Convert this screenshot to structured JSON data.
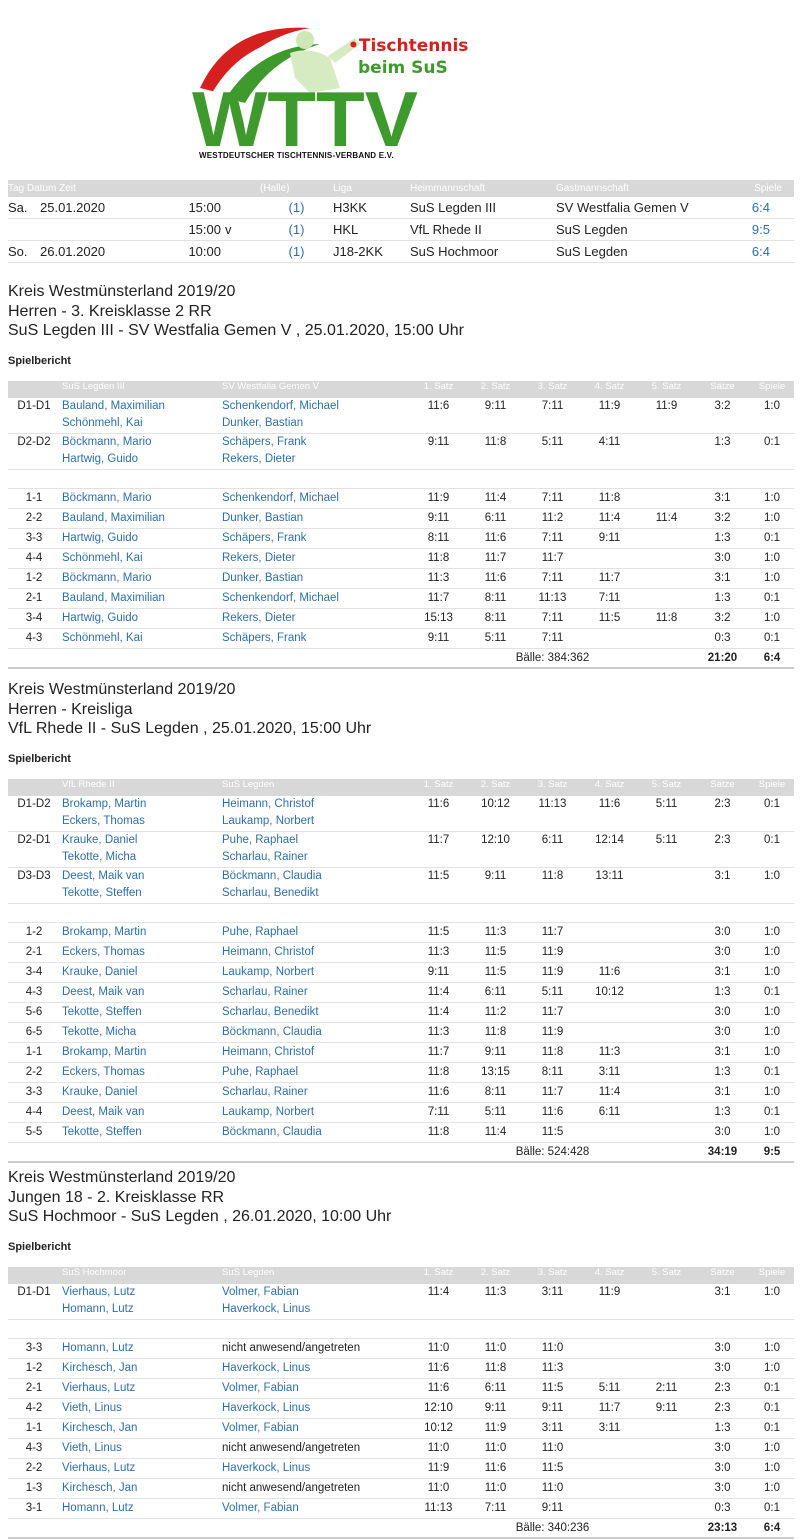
{
  "logo": {
    "letters": "WTTV",
    "line1": "•Tischtennis",
    "line2": "beim SuS",
    "subtitle": "WESTDEUTSCHER TISCHTENNIS-VERBAND E.V.",
    "colors": {
      "green": "#3e9a2c",
      "red": "#d62020"
    }
  },
  "schedule": {
    "headers": [
      "Tag Datum Zeit",
      "(Halle)",
      "Liga",
      "Heimmannschaft",
      "Gastmannschaft",
      "Spiele"
    ],
    "rows": [
      {
        "day": "Sa.",
        "date": "25.01.2020",
        "time": "15:00",
        "flag": "",
        "hall": "(1)",
        "league": "H3KK",
        "home": "SuS Legden III",
        "guest": "SV Westfalia Gemen V",
        "result": "6:4"
      },
      {
        "day": "",
        "date": "",
        "time": "15:00",
        "flag": "v",
        "hall": "(1)",
        "league": "HKL",
        "home": "VfL Rhede II",
        "guest": "SuS Legden",
        "result": "9:5"
      },
      {
        "day": "So.",
        "date": "26.01.2020",
        "time": "10:00",
        "flag": "",
        "hall": "(1)",
        "league": "J18-2KK",
        "home": "SuS Hochmoor",
        "guest": "SuS Legden",
        "result": "6:4"
      }
    ]
  },
  "label_report": "Spielbericht",
  "col_headers": {
    "s1": "1. Satz",
    "s2": "2. Satz",
    "s3": "3. Satz",
    "s4": "4. Satz",
    "s5": "5. Satz",
    "saetze": "Sätze",
    "spiele": "Spiele"
  },
  "matches": [
    {
      "title1": "Kreis Westmünsterland 2019/20",
      "title2": "Herren - 3. Kreisklasse 2 RR",
      "title3": "SuS Legden III - SV Westfalia Gemen V , 25.01.2020, 15:00 Uhr",
      "home_team": "SuS Legden III",
      "guest_team": "SV Westfalia Gemen V",
      "doubles": [
        {
          "pos": "D1-D1",
          "h1": "Bauland, Maximilian",
          "h2": "Schönmehl, Kai",
          "g1": "Schenkendorf, Michael",
          "g2": "Dunker, Bastian",
          "sets": [
            "11:6",
            "9:11",
            "7:11",
            "11:9",
            "11:9"
          ],
          "saetze": "3:2",
          "spiele": "1:0"
        },
        {
          "pos": "D2-D2",
          "h1": "Böckmann, Mario",
          "h2": "Hartwig, Guido",
          "g1": "Schäpers, Frank",
          "g2": "Rekers, Dieter",
          "sets": [
            "9:11",
            "11:8",
            "5:11",
            "4:11",
            ""
          ],
          "saetze": "1:3",
          "spiele": "0:1"
        }
      ],
      "singles": [
        {
          "pos": "1-1",
          "h": "Böckmann, Mario",
          "g": "Schenkendorf, Michael",
          "sets": [
            "11:9",
            "11:4",
            "7:11",
            "11:8",
            ""
          ],
          "saetze": "3:1",
          "spiele": "1:0"
        },
        {
          "pos": "2-2",
          "h": "Bauland, Maximilian",
          "g": "Dunker, Bastian",
          "sets": [
            "9:11",
            "6:11",
            "11:2",
            "11:4",
            "11:4"
          ],
          "saetze": "3:2",
          "spiele": "1:0"
        },
        {
          "pos": "3-3",
          "h": "Hartwig, Guido",
          "g": "Schäpers, Frank",
          "sets": [
            "8:11",
            "11:6",
            "7:11",
            "9:11",
            ""
          ],
          "saetze": "1:3",
          "spiele": "0:1"
        },
        {
          "pos": "4-4",
          "h": "Schönmehl, Kai",
          "g": "Rekers, Dieter",
          "sets": [
            "11:8",
            "11:7",
            "11:7",
            "",
            ""
          ],
          "saetze": "3:0",
          "spiele": "1:0"
        },
        {
          "pos": "1-2",
          "h": "Böckmann, Mario",
          "g": "Dunker, Bastian",
          "sets": [
            "11:3",
            "11:6",
            "7:11",
            "11:7",
            ""
          ],
          "saetze": "3:1",
          "spiele": "1:0"
        },
        {
          "pos": "2-1",
          "h": "Bauland, Maximilian",
          "g": "Schenkendorf, Michael",
          "sets": [
            "11:7",
            "8:11",
            "11:13",
            "7:11",
            ""
          ],
          "saetze": "1:3",
          "spiele": "0:1"
        },
        {
          "pos": "3-4",
          "h": "Hartwig, Guido",
          "g": "Rekers, Dieter",
          "sets": [
            "15:13",
            "8:11",
            "7:11",
            "11:5",
            "11:8"
          ],
          "saetze": "3:2",
          "spiele": "1:0"
        },
        {
          "pos": "4-3",
          "h": "Schönmehl, Kai",
          "g": "Schäpers, Frank",
          "sets": [
            "9:11",
            "5:11",
            "7:11",
            "",
            ""
          ],
          "saetze": "0:3",
          "spiele": "0:1"
        }
      ],
      "balls": "Bälle: 384:362",
      "total_saetze": "21:20",
      "total_spiele": "6:4"
    },
    {
      "title1": "Kreis Westmünsterland 2019/20",
      "title2": "Herren - Kreisliga",
      "title3": "VfL Rhede II - SuS Legden , 25.01.2020, 15:00 Uhr",
      "home_team": "VfL Rhede II",
      "guest_team": "SuS Legden",
      "doubles": [
        {
          "pos": "D1-D2",
          "h1": "Brokamp, Martin",
          "h2": "Eckers, Thomas",
          "g1": "Heimann, Christof",
          "g2": "Laukamp, Norbert",
          "sets": [
            "11:6",
            "10:12",
            "11:13",
            "11:6",
            "5:11"
          ],
          "saetze": "2:3",
          "spiele": "0:1"
        },
        {
          "pos": "D2-D1",
          "h1": "Krauke, Daniel",
          "h2": "Tekotte, Micha",
          "g1": "Puhe, Raphael",
          "g2": "Scharlau, Rainer",
          "sets": [
            "11:7",
            "12:10",
            "6:11",
            "12:14",
            "5:11"
          ],
          "saetze": "2:3",
          "spiele": "0:1"
        },
        {
          "pos": "D3-D3",
          "h1": "Deest, Maik van",
          "h2": "Tekotte, Steffen",
          "g1": "Böckmann, Claudia",
          "g2": "Scharlau, Benedikt",
          "sets": [
            "11:5",
            "9:11",
            "11:8",
            "13:11",
            ""
          ],
          "saetze": "3:1",
          "spiele": "1:0"
        }
      ],
      "singles": [
        {
          "pos": "1-2",
          "h": "Brokamp, Martin",
          "g": "Puhe, Raphael",
          "sets": [
            "11:5",
            "11:3",
            "11:7",
            "",
            ""
          ],
          "saetze": "3:0",
          "spiele": "1:0"
        },
        {
          "pos": "2-1",
          "h": "Eckers, Thomas",
          "g": "Heimann, Christof",
          "sets": [
            "11:3",
            "11:5",
            "11:9",
            "",
            ""
          ],
          "saetze": "3:0",
          "spiele": "1:0"
        },
        {
          "pos": "3-4",
          "h": "Krauke, Daniel",
          "g": "Laukamp, Norbert",
          "sets": [
            "9:11",
            "11:5",
            "11:9",
            "11:6",
            ""
          ],
          "saetze": "3:1",
          "spiele": "1:0"
        },
        {
          "pos": "4-3",
          "h": "Deest, Maik van",
          "g": "Scharlau, Rainer",
          "sets": [
            "11:4",
            "6:11",
            "5:11",
            "10:12",
            ""
          ],
          "saetze": "1:3",
          "spiele": "0:1"
        },
        {
          "pos": "5-6",
          "h": "Tekotte, Steffen",
          "g": "Scharlau, Benedikt",
          "sets": [
            "11:4",
            "11:2",
            "11:7",
            "",
            ""
          ],
          "saetze": "3:0",
          "spiele": "1:0"
        },
        {
          "pos": "6-5",
          "h": "Tekotte, Micha",
          "g": "Böckmann, Claudia",
          "sets": [
            "11:3",
            "11:8",
            "11:9",
            "",
            ""
          ],
          "saetze": "3:0",
          "spiele": "1:0"
        },
        {
          "pos": "1-1",
          "h": "Brokamp, Martin",
          "g": "Heimann, Christof",
          "sets": [
            "11:7",
            "9:11",
            "11:8",
            "11:3",
            ""
          ],
          "saetze": "3:1",
          "spiele": "1:0"
        },
        {
          "pos": "2-2",
          "h": "Eckers, Thomas",
          "g": "Puhe, Raphael",
          "sets": [
            "11:8",
            "13:15",
            "8:11",
            "3:11",
            ""
          ],
          "saetze": "1:3",
          "spiele": "0:1"
        },
        {
          "pos": "3-3",
          "h": "Krauke, Daniel",
          "g": "Scharlau, Rainer",
          "sets": [
            "11:6",
            "8:11",
            "11:7",
            "11:4",
            ""
          ],
          "saetze": "3:1",
          "spiele": "1:0"
        },
        {
          "pos": "4-4",
          "h": "Deest, Maik van",
          "g": "Laukamp, Norbert",
          "sets": [
            "7:11",
            "5:11",
            "11:6",
            "6:11",
            ""
          ],
          "saetze": "1:3",
          "spiele": "0:1"
        },
        {
          "pos": "5-5",
          "h": "Tekotte, Steffen",
          "g": "Böckmann, Claudia",
          "sets": [
            "11:8",
            "11:4",
            "11:5",
            "",
            ""
          ],
          "saetze": "3:0",
          "spiele": "1:0"
        }
      ],
      "balls": "Bälle: 524:428",
      "total_saetze": "34:19",
      "total_spiele": "9:5"
    },
    {
      "title1": "Kreis Westmünsterland 2019/20",
      "title2": "Jungen 18 - 2. Kreisklasse RR",
      "title3": "SuS Hochmoor - SuS Legden , 26.01.2020, 10:00 Uhr",
      "home_team": "SuS Hochmoor",
      "guest_team": "SuS Legden",
      "doubles": [
        {
          "pos": "D1-D1",
          "h1": "Vierhaus, Lutz",
          "h2": "Homann, Lutz",
          "g1": "Volmer, Fabian",
          "g2": "Haverkock, Linus",
          "sets": [
            "11:4",
            "11:3",
            "3:11",
            "11:9",
            ""
          ],
          "saetze": "3:1",
          "spiele": "1:0"
        }
      ],
      "singles": [
        {
          "pos": "3-3",
          "h": "Homann, Lutz",
          "g": "nicht anwesend/angetreten",
          "g_plain": true,
          "sets": [
            "11:0",
            "11:0",
            "11:0",
            "",
            ""
          ],
          "saetze": "3:0",
          "spiele": "1:0"
        },
        {
          "pos": "1-2",
          "h": "Kirchesch, Jan",
          "g": "Haverkock, Linus",
          "sets": [
            "11:6",
            "11:8",
            "11:3",
            "",
            ""
          ],
          "saetze": "3:0",
          "spiele": "1:0"
        },
        {
          "pos": "2-1",
          "h": "Vierhaus, Lutz",
          "g": "Volmer, Fabian",
          "sets": [
            "11:6",
            "6:11",
            "11:5",
            "5:11",
            "2:11"
          ],
          "saetze": "2:3",
          "spiele": "0:1"
        },
        {
          "pos": "4-2",
          "h": "Vieth, Linus",
          "g": "Haverkock, Linus",
          "sets": [
            "12:10",
            "9:11",
            "9:11",
            "11:7",
            "9:11"
          ],
          "saetze": "2:3",
          "spiele": "0:1"
        },
        {
          "pos": "1-1",
          "h": "Kirchesch, Jan",
          "g": "Volmer, Fabian",
          "sets": [
            "10:12",
            "11:9",
            "3:11",
            "3:11",
            ""
          ],
          "saetze": "1:3",
          "spiele": "0:1"
        },
        {
          "pos": "4-3",
          "h": "Vieth, Linus",
          "g": "nicht anwesend/angetreten",
          "g_plain": true,
          "sets": [
            "11:0",
            "11:0",
            "11:0",
            "",
            ""
          ],
          "saetze": "3:0",
          "spiele": "1:0"
        },
        {
          "pos": "2-2",
          "h": "Vierhaus, Lutz",
          "g": "Haverkock, Linus",
          "sets": [
            "11:9",
            "11:6",
            "11:5",
            "",
            ""
          ],
          "saetze": "3:0",
          "spiele": "1:0"
        },
        {
          "pos": "1-3",
          "h": "Kirchesch, Jan",
          "g": "nicht anwesend/angetreten",
          "g_plain": true,
          "sets": [
            "11:0",
            "11:0",
            "11:0",
            "",
            ""
          ],
          "saetze": "3:0",
          "spiele": "1:0"
        },
        {
          "pos": "3-1",
          "h": "Homann, Lutz",
          "g": "Volmer, Fabian",
          "sets": [
            "11:13",
            "7:11",
            "9:11",
            "",
            ""
          ],
          "saetze": "0:3",
          "spiele": "0:1"
        }
      ],
      "balls": "Bälle: 340:236",
      "total_saetze": "23:13",
      "total_spiele": "6:4"
    }
  ]
}
